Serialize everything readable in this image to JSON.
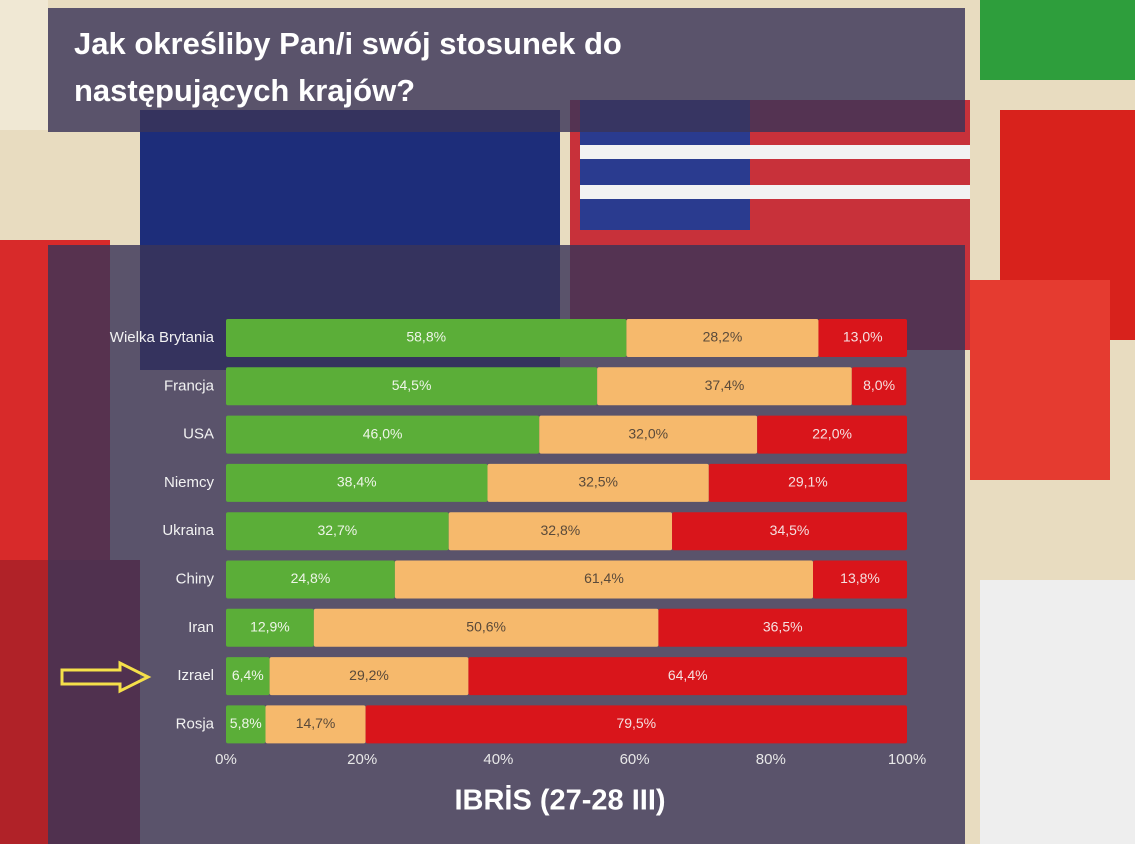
{
  "chart_data": {
    "type": "stacked-bar-horizontal",
    "title": "Jak określiby Pan/i swój stosunek do następujących krajów?",
    "source": "IBRİS (27-28 III)",
    "categories": [
      "Wielka Brytania",
      "Francja",
      "USA",
      "Niemcy",
      "Ukraina",
      "Chiny",
      "Iran",
      "Izrael",
      "Rosja"
    ],
    "series": [
      {
        "color": "#5bae38",
        "values": [
          58.8,
          54.5,
          46.0,
          38.4,
          32.7,
          24.8,
          12.9,
          6.4,
          5.8
        ],
        "value_labels": [
          "58,8%",
          "54,5%",
          "46,0%",
          "38,4%",
          "32,7%",
          "24,8%",
          "12,9%",
          "6,4%",
          "5,8%"
        ]
      },
      {
        "color": "#f6b96c",
        "values": [
          28.2,
          37.4,
          32.0,
          32.5,
          32.8,
          61.4,
          50.6,
          29.2,
          14.7
        ],
        "value_labels": [
          "28,2%",
          "37,4%",
          "32,0%",
          "32,5%",
          "32,8%",
          "61,4%",
          "50,6%",
          "29,2%",
          "14,7%"
        ]
      },
      {
        "color": "#d9151b",
        "values": [
          13.0,
          8.0,
          22.0,
          29.1,
          34.5,
          13.8,
          36.5,
          64.4,
          79.5
        ],
        "value_labels": [
          "13,0%",
          "8,0%",
          "22,0%",
          "29,1%",
          "34,5%",
          "13,8%",
          "36,5%",
          "64,4%",
          "79,5%"
        ]
      }
    ],
    "xlim": [
      0,
      100
    ],
    "xticks": [
      {
        "value": 0,
        "label": "0%"
      },
      {
        "value": 20,
        "label": "20%"
      },
      {
        "value": 40,
        "label": "40%"
      },
      {
        "value": 60,
        "label": "60%"
      },
      {
        "value": 80,
        "label": "80%"
      },
      {
        "value": 100,
        "label": "100%"
      }
    ]
  }
}
